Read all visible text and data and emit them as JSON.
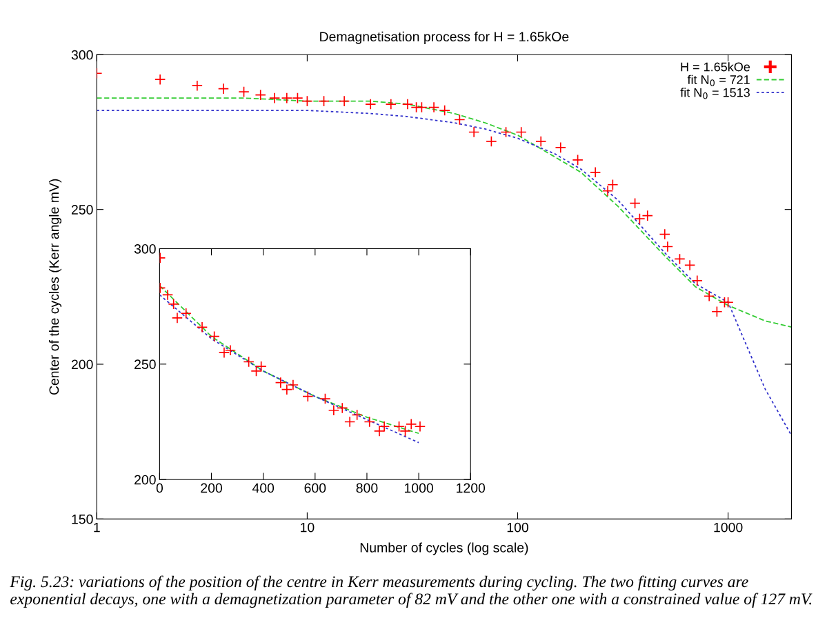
{
  "chart_data": [
    {
      "type": "scatter",
      "title": "Demagnetisation process for H = 1.65kOe",
      "xlabel": "Number of cycles (log scale)",
      "ylabel": "Center of the cycles (Kerr angle mV)",
      "log": "x",
      "xlim": [
        1,
        2000
      ],
      "ylim": [
        150,
        300
      ],
      "xticks": [
        1,
        10,
        100,
        1000
      ],
      "yticks": [
        150,
        200,
        250,
        300
      ],
      "grid": false,
      "legend": "top right",
      "annotations": [
        "Fig. 5.23: variations of the position of the centre in Kerr measurements during cycling. The two fitting curves are exponential decays, one with a demagnetization parameter of 82 mV and the other one with a constrained value of 127 mV."
      ],
      "series": [
        {
          "name": "H = 1.65kOe",
          "marker": "cross",
          "color": "#ff0000",
          "x": [
            1,
            2,
            3,
            4,
            5,
            6,
            7,
            8,
            9,
            10,
            12,
            15,
            20,
            25,
            30,
            33,
            35,
            40,
            45,
            53,
            62,
            75,
            88,
            104,
            129,
            160,
            193,
            234,
            268,
            283,
            361,
            380,
            414,
            500,
            516,
            589,
            658,
            713,
            813,
            885,
            962,
            1000
          ],
          "values": [
            294,
            292,
            290,
            289,
            288,
            287,
            286,
            286,
            286,
            285,
            285,
            285,
            284,
            284,
            284,
            283,
            283,
            283,
            282,
            279,
            275,
            272,
            275,
            275,
            272,
            270,
            266,
            262,
            256,
            258,
            252,
            247,
            248,
            242,
            238,
            234,
            232,
            227,
            222,
            217,
            220,
            220
          ]
        },
        {
          "name": "fit N$_{0}$ = 721",
          "type": "line",
          "line_style": "dashed",
          "marker": "none",
          "color": "#33cc33",
          "x": [
            1,
            5,
            10,
            20,
            30,
            50,
            70,
            100,
            150,
            200,
            300,
            500,
            700,
            1000,
            1500,
            2000
          ],
          "values": [
            286,
            286,
            285,
            285,
            284,
            281,
            278,
            274,
            267,
            262,
            251,
            235,
            225,
            219,
            214,
            212
          ]
        },
        {
          "name": "fit N$_{0}$ = 1513",
          "type": "line",
          "line_style": "dotted",
          "marker": "none",
          "color": "#3333cc",
          "x": [
            1,
            5,
            10,
            20,
            30,
            50,
            70,
            100,
            150,
            200,
            300,
            500,
            700,
            1000,
            1500,
            2000
          ],
          "values": [
            282,
            282,
            282,
            281,
            280,
            278,
            276,
            273,
            268,
            263,
            253,
            236,
            226,
            220,
            192,
            177
          ]
        }
      ]
    },
    {
      "type": "scatter",
      "xlim": [
        0,
        1200
      ],
      "ylim": [
        200,
        300
      ],
      "xticks": [
        0,
        200,
        400,
        600,
        800,
        1000,
        1200
      ],
      "yticks": [
        200,
        250,
        300
      ],
      "grid": false,
      "series": [
        {
          "marker": "cross",
          "color": "#ff0000",
          "x": [
            2,
            2,
            31,
            54,
            68,
            102,
            164,
            211,
            249,
            273,
            344,
            373,
            392,
            467,
            491,
            515,
            572,
            639,
            672,
            705,
            734,
            762,
            810,
            848,
            867,
            924,
            948,
            971,
            1005
          ],
          "values": [
            296,
            283,
            280,
            276,
            270,
            272,
            266,
            262,
            255,
            256,
            251,
            247,
            249,
            242,
            239,
            241,
            236,
            235,
            230,
            231,
            225,
            228,
            225,
            221,
            223,
            223,
            221,
            224,
            223
          ]
        },
        {
          "type": "line",
          "line_style": "dashed",
          "marker": "none",
          "color": "#33cc33",
          "x": [
            0,
            200,
            400,
            600,
            800,
            1000
          ],
          "values": [
            284,
            262,
            247,
            236,
            227,
            220
          ]
        },
        {
          "type": "line",
          "line_style": "dotted",
          "marker": "none",
          "color": "#3333cc",
          "x": [
            0,
            200,
            400,
            600,
            800,
            1000
          ],
          "values": [
            280,
            261,
            247,
            236,
            226,
            216
          ]
        }
      ]
    }
  ]
}
